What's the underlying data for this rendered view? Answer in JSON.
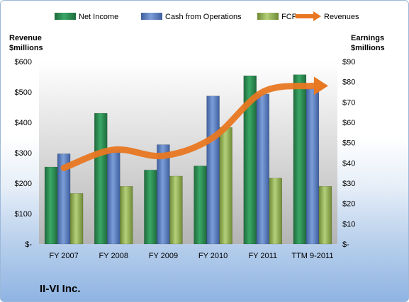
{
  "company": "II-VI Inc.",
  "chart_data": {
    "type": "bar",
    "categories": [
      "FY 2007",
      "FY 2008",
      "FY 2009",
      "FY 2010",
      "FY 2011",
      "TTM 9-2011"
    ],
    "series": [
      {
        "name": "Net Income",
        "axis": "right",
        "values": [
          38,
          64.5,
          36.5,
          38.5,
          83,
          83.5
        ],
        "color": "#2e8b57"
      },
      {
        "name": "Cash from Operations",
        "axis": "right",
        "values": [
          44.5,
          46.5,
          49,
          73,
          74,
          77
        ],
        "color": "#5a7fc0"
      },
      {
        "name": "FCF",
        "axis": "right",
        "values": [
          25,
          28.5,
          33.5,
          57.5,
          32.5,
          28.5
        ],
        "color": "#9bbb59"
      }
    ],
    "line_series": {
      "name": "Revenues",
      "axis": "left",
      "type": "line",
      "values": [
        250,
        310,
        290,
        350,
        500,
        520
      ],
      "color": "#e87722"
    },
    "left_axis": {
      "title_line1": "Revenue",
      "title_line2": "$millions",
      "ticks": [
        "$-",
        "$100",
        "$200",
        "$300",
        "$400",
        "$500",
        "$600"
      ],
      "range": [
        0,
        600
      ]
    },
    "right_axis": {
      "title_line1": "Earnings",
      "title_line2": "$millions",
      "ticks": [
        "$-",
        "$10",
        "$20",
        "$30",
        "$40",
        "$50",
        "$60",
        "$70",
        "$80",
        "$90"
      ],
      "range": [
        0,
        90
      ]
    },
    "legend_position": "top",
    "grid": false
  }
}
